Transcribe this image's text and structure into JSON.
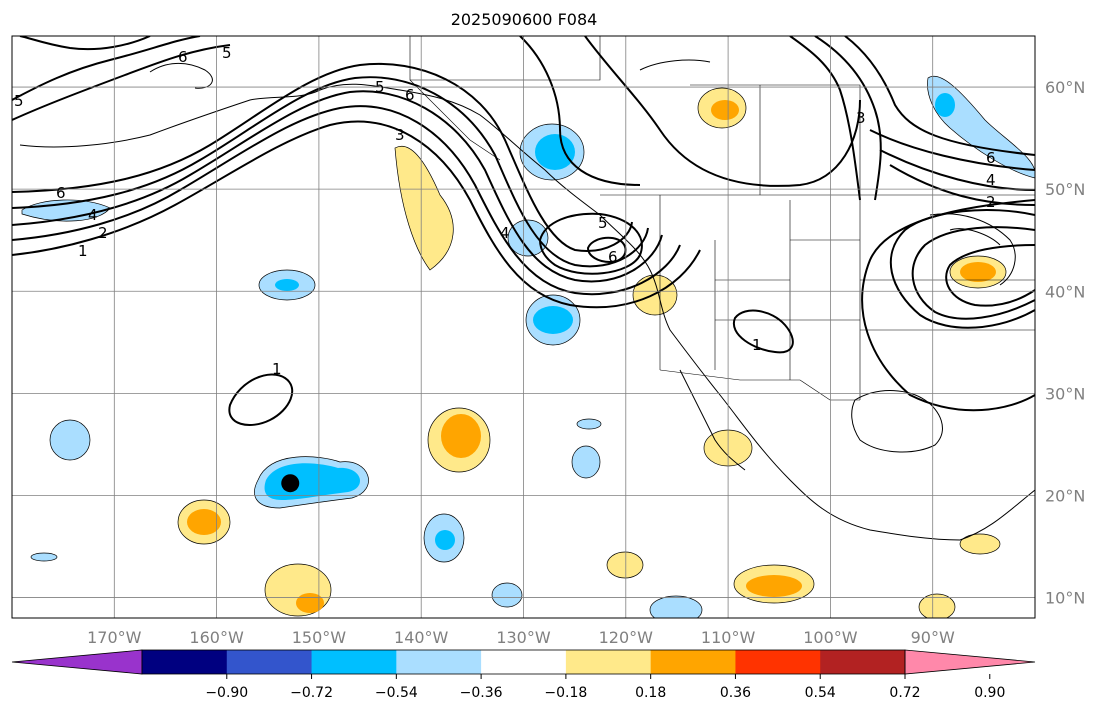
{
  "title": "2025090600 F084",
  "map": {
    "projection": "lat-lon",
    "lon_range": [
      -180,
      -80
    ],
    "lat_range": [
      8,
      65
    ],
    "lon_ticks": [
      {
        "value": -170,
        "label": "170°W"
      },
      {
        "value": -160,
        "label": "160°W"
      },
      {
        "value": -150,
        "label": "150°W"
      },
      {
        "value": -140,
        "label": "140°W"
      },
      {
        "value": -130,
        "label": "130°W"
      },
      {
        "value": -120,
        "label": "120°W"
      },
      {
        "value": -110,
        "label": "110°W"
      },
      {
        "value": -100,
        "label": "100°W"
      },
      {
        "value": -90,
        "label": "90°W"
      }
    ],
    "lat_ticks": [
      {
        "value": 60,
        "label": "60°N"
      },
      {
        "value": 50,
        "label": "50°N"
      },
      {
        "value": 40,
        "label": "40°N"
      },
      {
        "value": 30,
        "label": "30°N"
      },
      {
        "value": 20,
        "label": "20°N"
      },
      {
        "value": 10,
        "label": "10°N"
      }
    ],
    "gridlines": true,
    "marker": {
      "lon": -152.8,
      "lat": 21.2,
      "color": "#000000"
    },
    "contour_labels": [
      "5",
      "6",
      "5",
      "6",
      "3",
      "6",
      "4",
      "2",
      "1",
      "3",
      "5",
      "6",
      "4",
      "1",
      "1",
      "6",
      "4",
      "2",
      "5"
    ]
  },
  "colorbar": {
    "colors": [
      "#9933cc",
      "#000080",
      "#3355cc",
      "#00bfff",
      "#aadeff",
      "#ffffff",
      "#ffe98a",
      "#ffa500",
      "#ff3300",
      "#b22222",
      "#ff88aa"
    ],
    "tick_labels": [
      "−0.90",
      "−0.72",
      "−0.54",
      "−0.36",
      "−0.18",
      "0.18",
      "0.36",
      "0.54",
      "0.72",
      "0.90"
    ]
  }
}
